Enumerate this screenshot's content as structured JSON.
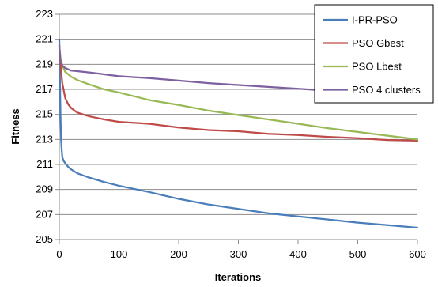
{
  "chart_data": {
    "type": "line",
    "title": "",
    "xlabel": "Iterations",
    "ylabel": "Fitness",
    "xlim": [
      0,
      600
    ],
    "ylim": [
      205,
      223
    ],
    "x_ticks": [
      0,
      100,
      200,
      300,
      400,
      500,
      600
    ],
    "y_ticks": [
      205,
      207,
      209,
      211,
      213,
      215,
      217,
      219,
      221,
      223
    ],
    "grid": "horizontal",
    "legend_position": "top-right",
    "series": [
      {
        "name": "I-PR-PSO",
        "color": "#4a7ebb",
        "x": [
          0,
          1,
          2,
          3,
          4,
          5,
          7,
          10,
          15,
          20,
          30,
          50,
          75,
          100,
          150,
          200,
          250,
          300,
          350,
          400,
          450,
          500,
          550,
          600
        ],
        "y": [
          221,
          218,
          215,
          213,
          212.2,
          211.6,
          211.3,
          211.1,
          210.8,
          210.6,
          210.3,
          209.95,
          209.6,
          209.3,
          208.8,
          208.25,
          207.8,
          207.45,
          207.1,
          206.85,
          206.6,
          206.35,
          206.15,
          205.95
        ]
      },
      {
        "name": "PSO Gbest",
        "color": "#be4b48",
        "x": [
          0,
          2,
          5,
          10,
          15,
          20,
          30,
          50,
          75,
          100,
          150,
          200,
          250,
          300,
          350,
          400,
          450,
          500,
          550,
          600
        ],
        "y": [
          220.5,
          219,
          217.5,
          216.3,
          215.8,
          215.5,
          215.15,
          214.85,
          214.6,
          214.4,
          214.25,
          213.95,
          213.75,
          213.65,
          213.45,
          213.35,
          213.2,
          213.1,
          212.95,
          212.9
        ]
      },
      {
        "name": "PSO Lbest",
        "color": "#98b954",
        "x": [
          0,
          2,
          5,
          10,
          20,
          30,
          50,
          75,
          100,
          150,
          200,
          250,
          300,
          350,
          400,
          450,
          500,
          550,
          600
        ],
        "y": [
          220.5,
          219.5,
          218.9,
          218.4,
          218,
          217.75,
          217.4,
          217,
          216.75,
          216.15,
          215.75,
          215.3,
          214.95,
          214.6,
          214.25,
          213.9,
          213.6,
          213.3,
          213
        ]
      },
      {
        "name": "PSO 4 clusters",
        "color": "#7d60a0",
        "x": [
          0,
          2,
          5,
          10,
          20,
          30,
          50,
          75,
          100,
          150,
          200,
          250,
          300,
          350,
          400,
          450,
          470
        ],
        "y": [
          220.5,
          219.3,
          218.9,
          218.7,
          218.5,
          218.45,
          218.35,
          218.2,
          218.05,
          217.9,
          217.7,
          217.5,
          217.35,
          217.2,
          217.05,
          216.9,
          216.85
        ]
      }
    ]
  }
}
